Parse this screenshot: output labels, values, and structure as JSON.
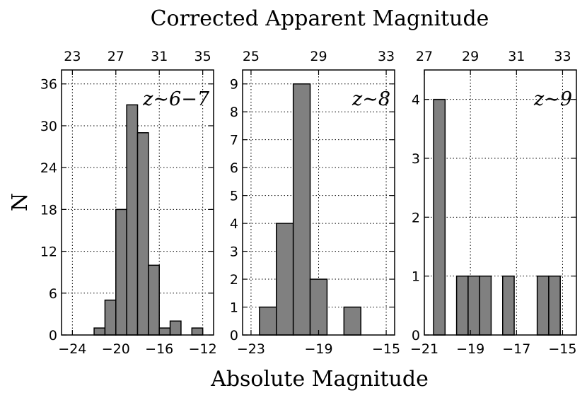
{
  "title": "Corrected Apparent Magnitude",
  "xlabel": "Absolute Magnitude",
  "ylabel": "N",
  "colors": {
    "bar": "#808080",
    "edge": "#000000",
    "background": "#ffffff"
  },
  "chart_data": [
    {
      "type": "bar",
      "label": "z∼6−7",
      "xlim": [
        -25,
        -11
      ],
      "ylim": [
        0,
        38
      ],
      "bin_width": 1,
      "bars": [
        {
          "x0": -22,
          "count": 1
        },
        {
          "x0": -21,
          "count": 5
        },
        {
          "x0": -20,
          "count": 18
        },
        {
          "x0": -19,
          "count": 33
        },
        {
          "x0": -18,
          "count": 29
        },
        {
          "x0": -17,
          "count": 10
        },
        {
          "x0": -16,
          "count": 1
        },
        {
          "x0": -15,
          "count": 2
        },
        {
          "x0": -13,
          "count": 1
        }
      ],
      "bottom_ticks": [
        -24,
        -20,
        -16,
        -12
      ],
      "bottom_tick_labels": [
        "−24",
        "−20",
        "−16",
        "−12"
      ],
      "left_ticks": [
        0,
        6,
        12,
        18,
        24,
        30,
        36
      ],
      "left_tick_labels": [
        "0",
        "6",
        "12",
        "18",
        "24",
        "30",
        "36"
      ],
      "top_ticks": [
        23,
        27,
        31,
        35
      ],
      "top_tick_labels": [
        "23",
        "27",
        "31",
        "35"
      ],
      "top_offset": 47
    },
    {
      "type": "bar",
      "label": "z∼8",
      "xlim": [
        -23.5,
        -14.5
      ],
      "ylim": [
        0,
        9.5
      ],
      "bin_width": 1,
      "bars": [
        {
          "x0": -22.5,
          "count": 1
        },
        {
          "x0": -21.5,
          "count": 4
        },
        {
          "x0": -20.5,
          "count": 9
        },
        {
          "x0": -19.5,
          "count": 2
        },
        {
          "x0": -17.5,
          "count": 1
        }
      ],
      "bottom_ticks": [
        -23,
        -19,
        -15
      ],
      "bottom_tick_labels": [
        "−23",
        "−19",
        "−15"
      ],
      "left_ticks": [
        0,
        1,
        2,
        3,
        4,
        5,
        6,
        7,
        8,
        9
      ],
      "left_tick_labels": [
        "0",
        "1",
        "2",
        "3",
        "4",
        "5",
        "6",
        "7",
        "8",
        "9"
      ],
      "top_ticks": [
        25,
        29,
        33
      ],
      "top_tick_labels": [
        "25",
        "29",
        "33"
      ],
      "top_offset": 48
    },
    {
      "type": "bar",
      "label": "z∼9",
      "xlim": [
        -21,
        -14.4
      ],
      "ylim": [
        0,
        4.5
      ],
      "bin_width": 0.5,
      "bars": [
        {
          "x0": -20.6,
          "count": 4
        },
        {
          "x0": -19.6,
          "count": 1
        },
        {
          "x0": -19.1,
          "count": 1
        },
        {
          "x0": -18.6,
          "count": 1
        },
        {
          "x0": -17.6,
          "count": 1
        },
        {
          "x0": -16.1,
          "count": 1
        },
        {
          "x0": -15.6,
          "count": 1
        }
      ],
      "bottom_ticks": [
        -21,
        -19,
        -17,
        -15
      ],
      "bottom_tick_labels": [
        "−21",
        "−19",
        "−17",
        "−15"
      ],
      "left_ticks": [
        0,
        1,
        2,
        3,
        4
      ],
      "left_tick_labels": [
        "0",
        "1",
        "2",
        "3",
        "4"
      ],
      "top_ticks": [
        27,
        29,
        31,
        33
      ],
      "top_tick_labels": [
        "27",
        "29",
        "31",
        "33"
      ],
      "top_offset": 48
    }
  ]
}
